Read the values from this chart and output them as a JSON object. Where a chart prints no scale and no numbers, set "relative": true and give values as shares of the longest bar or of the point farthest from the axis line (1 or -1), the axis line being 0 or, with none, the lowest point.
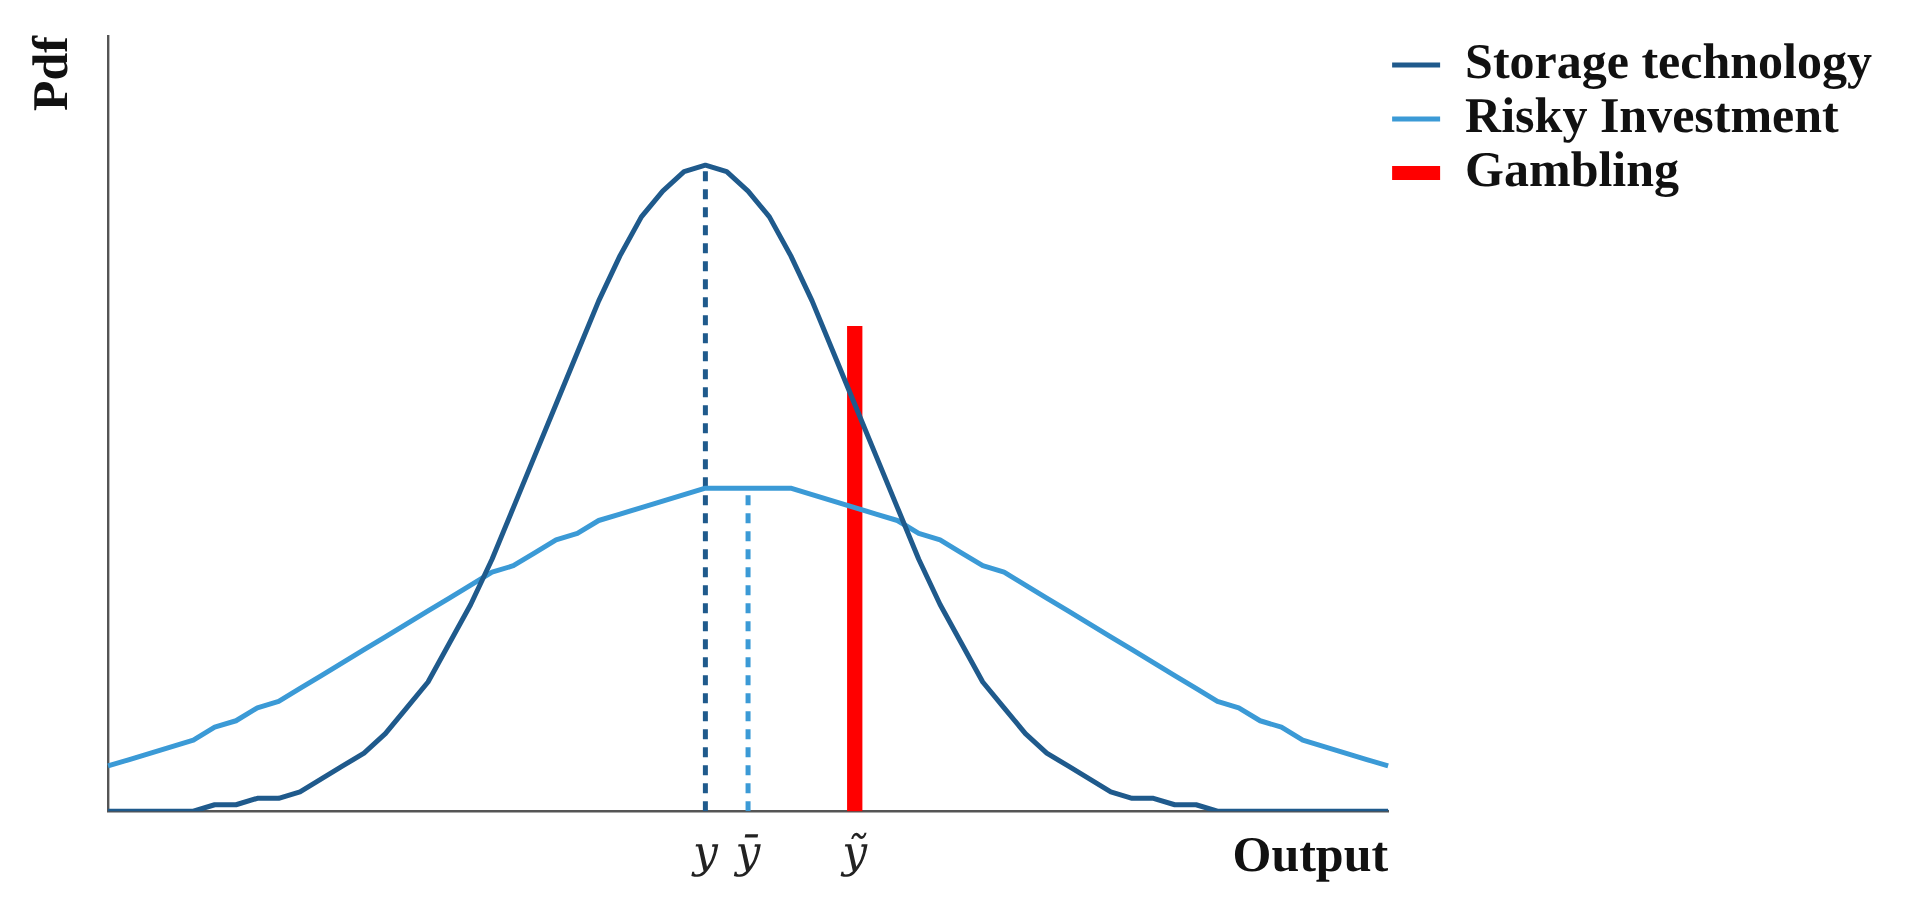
{
  "chart_data": {
    "type": "line",
    "xlabel": "Output",
    "ylabel": "Pdf",
    "relative": true,
    "legend": "top right",
    "grid": false,
    "marker": "none",
    "categories": [
      null,
      null,
      null,
      null,
      null,
      null,
      null,
      null,
      null,
      null,
      null,
      null,
      null,
      null,
      null,
      null,
      null,
      null,
      null,
      null,
      null,
      null,
      null,
      null,
      null,
      null,
      null,
      null,
      "y",
      null,
      "ȳ",
      null,
      null,
      null,
      null,
      "ỹ",
      null,
      null,
      null,
      null,
      null,
      null,
      null,
      null,
      null,
      null,
      null,
      null,
      null,
      null,
      null,
      null,
      null,
      null,
      null,
      null,
      null,
      null,
      null,
      null,
      null
    ],
    "series": [
      {
        "name": "Storage technology",
        "color": "#1f5a8c",
        "values": [
          0,
          0,
          0,
          0,
          0,
          0.01,
          0.01,
          0.02,
          0.02,
          0.03,
          0.05,
          0.07,
          0.09,
          0.12,
          0.16,
          0.2,
          0.26,
          0.32,
          0.39,
          0.47,
          0.55,
          0.63,
          0.71,
          0.79,
          0.86,
          0.92,
          0.96,
          0.99,
          1,
          0.99,
          0.96,
          0.92,
          0.86,
          0.79,
          0.71,
          0.63,
          0.55,
          0.47,
          0.39,
          0.32,
          0.26,
          0.2,
          0.16,
          0.12,
          0.09,
          0.07,
          0.05,
          0.03,
          0.02,
          0.02,
          0.01,
          0.01,
          0,
          0,
          0,
          0,
          0,
          0,
          0,
          0,
          0
        ]
      },
      {
        "name": "Risky Investment",
        "color": "#3b9ad6",
        "values": [
          0.07,
          0.08,
          0.09,
          0.1,
          0.11,
          0.13,
          0.14,
          0.16,
          0.17,
          0.19,
          0.21,
          0.23,
          0.25,
          0.27,
          0.29,
          0.31,
          0.33,
          0.35,
          0.37,
          0.38,
          0.4,
          0.42,
          0.43,
          0.45,
          0.46,
          0.47,
          0.48,
          0.49,
          0.5,
          0.5,
          0.5,
          0.5,
          0.5,
          0.49,
          0.48,
          0.47,
          0.46,
          0.45,
          0.43,
          0.42,
          0.4,
          0.38,
          0.37,
          0.35,
          0.33,
          0.31,
          0.29,
          0.27,
          0.25,
          0.23,
          0.21,
          0.19,
          0.17,
          0.16,
          0.14,
          0.13,
          0.11,
          0.1,
          0.09,
          0.08,
          0.07
        ]
      },
      {
        "name": "Gambling",
        "type": "bar",
        "color": "#ff0000",
        "x": [
          "ỹ"
        ],
        "values": [
          0.75
        ]
      },
      {
        "type": "line",
        "color": "#1f5a8c",
        "line_style": "dashed",
        "x": [
          "y",
          "y"
        ],
        "values": [
          0,
          1
        ]
      },
      {
        "type": "line",
        "color": "#3b9ad6",
        "line_style": "dashed",
        "x": [
          "ȳ",
          "ȳ"
        ],
        "values": [
          0,
          0.5
        ]
      }
    ]
  }
}
